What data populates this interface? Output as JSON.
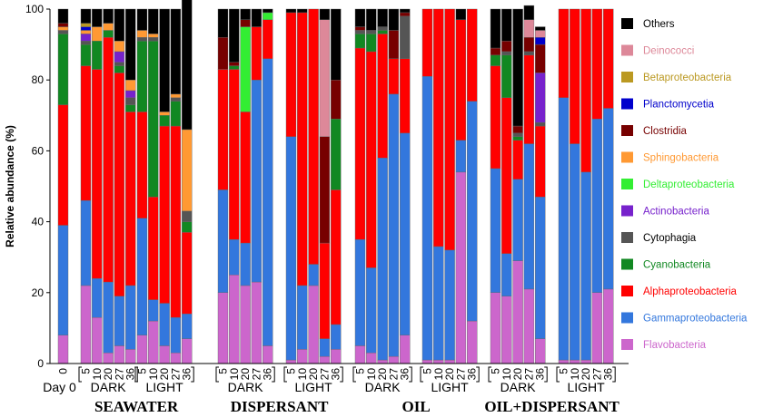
{
  "chart_data": {
    "type": "bar",
    "stacked": true,
    "ylabel": "Relative abundance (%)",
    "ylim": [
      0,
      100
    ],
    "yticks": [
      0,
      20,
      40,
      60,
      80,
      100
    ],
    "categories": [
      "0",
      "5",
      "10",
      "20",
      "27",
      "36",
      "5",
      "10",
      "20",
      "27",
      "36",
      "5",
      "10",
      "20",
      "27",
      "36",
      "5",
      "10",
      "20",
      "27",
      "36",
      "5",
      "10",
      "20",
      "27",
      "36",
      "5",
      "10",
      "20",
      "27",
      "36",
      "5",
      "10",
      "20",
      "27",
      "36",
      "5",
      "10",
      "20",
      "27",
      "36"
    ],
    "xtick_groups": [
      {
        "start": 1,
        "end": 5
      },
      {
        "start": 6,
        "end": 10
      },
      {
        "start": 11,
        "end": 15
      },
      {
        "start": 16,
        "end": 20
      },
      {
        "start": 21,
        "end": 25
      },
      {
        "start": 26,
        "end": 30
      },
      {
        "start": 31,
        "end": 35
      },
      {
        "start": 36,
        "end": 40
      }
    ],
    "day0_label": "Day 0",
    "subgroups": [
      {
        "label": "DARK",
        "start": 1,
        "end": 5
      },
      {
        "label": "LIGHT",
        "start": 6,
        "end": 10
      },
      {
        "label": "DARK",
        "start": 11,
        "end": 15
      },
      {
        "label": "LIGHT",
        "start": 16,
        "end": 20
      },
      {
        "label": "DARK",
        "start": 21,
        "end": 25
      },
      {
        "label": "LIGHT",
        "start": 26,
        "end": 30
      },
      {
        "label": "DARK",
        "start": 31,
        "end": 35
      },
      {
        "label": "LIGHT",
        "start": 36,
        "end": 40
      }
    ],
    "groups": [
      {
        "label": "SEAWATER",
        "start": 1,
        "end": 10
      },
      {
        "label": "DISPERSANT",
        "start": 11,
        "end": 20
      },
      {
        "label": "OIL",
        "start": 21,
        "end": 30
      },
      {
        "label": "OIL+DISPERSANT",
        "start": 31,
        "end": 40
      }
    ],
    "series": [
      {
        "name": "Flavobacteria",
        "color": "#cc66cc",
        "values": [
          8,
          22,
          13,
          3,
          5,
          4,
          8,
          12,
          5,
          3,
          7,
          20,
          25,
          22,
          23,
          5,
          1,
          4,
          22,
          2,
          4,
          5,
          3,
          1,
          2,
          8,
          1,
          1,
          1,
          54,
          12,
          20,
          19,
          29,
          21,
          7,
          1,
          1,
          1,
          20,
          21
        ]
      },
      {
        "name": "Gammaproteobacteria",
        "color": "#3377dd",
        "values": [
          31,
          24,
          11,
          20,
          14,
          18,
          33,
          6,
          12,
          10,
          7,
          29,
          10,
          12,
          57,
          81,
          63,
          18,
          6,
          5,
          7,
          30,
          24,
          57,
          74,
          57,
          80,
          32,
          31,
          9,
          62,
          35,
          12,
          23,
          41,
          40,
          74,
          61,
          53,
          49,
          51
        ]
      },
      {
        "name": "Alphaproteobacteria",
        "color": "#ff0000",
        "values": [
          34,
          38,
          59,
          69,
          63,
          49,
          30,
          29,
          50,
          54,
          23,
          34,
          48,
          37,
          15,
          11,
          35,
          77,
          72,
          27,
          38,
          54,
          61,
          35,
          10,
          21,
          19,
          67,
          68,
          34,
          26,
          29,
          44,
          11,
          25,
          20,
          25,
          38,
          46,
          31,
          28
        ]
      },
      {
        "name": "Cyanobacteria",
        "color": "#118822",
        "values": [
          20,
          6,
          8,
          2,
          2,
          2,
          20,
          44,
          3,
          7,
          3,
          0,
          1,
          0,
          0,
          0,
          0,
          0,
          0,
          0,
          20,
          4,
          5,
          1,
          0,
          0,
          0,
          0,
          0,
          0,
          0,
          3,
          12,
          1,
          0,
          0,
          0,
          0,
          0,
          0,
          0
        ]
      },
      {
        "name": "Cytophagia",
        "color": "#555555",
        "values": [
          1,
          1,
          0,
          0,
          1,
          2,
          1,
          1,
          0,
          1,
          3,
          0,
          0,
          0,
          0,
          0,
          0,
          0,
          0,
          0,
          0,
          1,
          1,
          1,
          0,
          12,
          0,
          0,
          0,
          0,
          0,
          0,
          1,
          1,
          1,
          1,
          0,
          0,
          0,
          0,
          0
        ]
      },
      {
        "name": "Actinobacteria",
        "color": "#7722cc",
        "values": [
          0,
          2,
          0,
          0,
          3,
          2,
          0,
          0,
          0,
          0,
          0,
          0,
          0,
          0,
          0,
          0,
          0,
          0,
          0,
          0,
          0,
          0,
          0,
          0,
          0,
          0,
          0,
          0,
          0,
          0,
          0,
          0,
          0,
          0,
          0,
          14,
          0,
          0,
          0,
          0,
          0
        ]
      },
      {
        "name": "Deltaproteobacteria",
        "color": "#33ee33",
        "values": [
          0,
          0,
          0,
          0,
          0,
          0,
          0,
          0,
          0,
          0,
          0,
          0,
          0,
          24,
          0,
          2,
          0,
          0,
          0,
          0,
          0,
          0,
          0,
          0,
          0,
          0,
          0,
          0,
          0,
          0,
          0,
          0,
          0,
          0,
          0,
          0,
          0,
          0,
          0,
          0,
          0
        ]
      },
      {
        "name": "Sphingobacteria",
        "color": "#ff9933",
        "values": [
          1,
          1,
          4,
          2,
          3,
          3,
          2,
          1,
          1,
          1,
          23,
          0,
          0,
          0,
          0,
          0,
          0,
          0,
          0,
          0,
          0,
          0,
          0,
          0,
          0,
          0,
          0,
          0,
          0,
          0,
          0,
          0,
          0,
          0,
          0,
          0,
          0,
          0,
          0,
          0,
          0
        ]
      },
      {
        "name": "Clostridia",
        "color": "#770000",
        "values": [
          1,
          0,
          0,
          0,
          0,
          0,
          0,
          0,
          0,
          0,
          0,
          9,
          1,
          2,
          0,
          0,
          0,
          0,
          0,
          30,
          11,
          1,
          0,
          0,
          8,
          1,
          0,
          0,
          0,
          0,
          0,
          2,
          3,
          2,
          4,
          8,
          0,
          0,
          0,
          0,
          0
        ]
      },
      {
        "name": "Planctomycetia",
        "color": "#0000cc",
        "values": [
          0,
          1,
          0,
          0,
          0,
          0,
          0,
          0,
          0,
          0,
          0,
          0,
          0,
          0,
          0,
          0,
          0,
          0,
          0,
          0,
          0,
          0,
          0,
          0,
          0,
          0,
          0,
          0,
          0,
          0,
          0,
          0,
          0,
          0,
          0,
          2,
          0,
          0,
          0,
          0,
          0
        ]
      },
      {
        "name": "Betaproteobacteria",
        "color": "#bb9922",
        "values": [
          0,
          1,
          0,
          0,
          0,
          0,
          0,
          0,
          0,
          0,
          0,
          0,
          0,
          0,
          0,
          0,
          0,
          0,
          0,
          0,
          0,
          0,
          0,
          0,
          0,
          0,
          0,
          0,
          0,
          0,
          0,
          0,
          0,
          0,
          0,
          0,
          0,
          0,
          0,
          0,
          0
        ]
      },
      {
        "name": "Deinococci",
        "color": "#dd8899",
        "values": [
          0,
          0,
          0,
          0,
          0,
          0,
          0,
          0,
          0,
          0,
          0,
          0,
          0,
          0,
          0,
          0,
          0,
          0,
          0,
          33,
          0,
          0,
          0,
          0,
          0,
          0,
          0,
          0,
          0,
          0,
          0,
          0,
          0,
          0,
          5,
          2,
          0,
          0,
          0,
          0,
          0
        ]
      },
      {
        "name": "Others",
        "color": "#000000",
        "values": [
          4,
          4,
          5,
          4,
          9,
          20,
          6,
          7,
          29,
          24,
          37,
          8,
          15,
          3,
          5,
          1,
          1,
          1,
          0,
          3,
          20,
          5,
          6,
          5,
          6,
          1,
          0,
          0,
          0,
          3,
          0,
          11,
          9,
          33,
          4,
          1,
          0,
          0,
          0,
          0,
          0
        ]
      }
    ],
    "legend": [
      "Others",
      "Deinococci",
      "Betaproteobacteria",
      "Planctomycetia",
      "Clostridia",
      "Sphingobacteria",
      "Deltaproteobacteria",
      "Actinobacteria",
      "Cytophagia",
      "Cyanobacteria",
      "Alphaproteobacteria",
      "Gammaproteobacteria",
      "Flavobacteria"
    ],
    "legend_position": "right"
  }
}
